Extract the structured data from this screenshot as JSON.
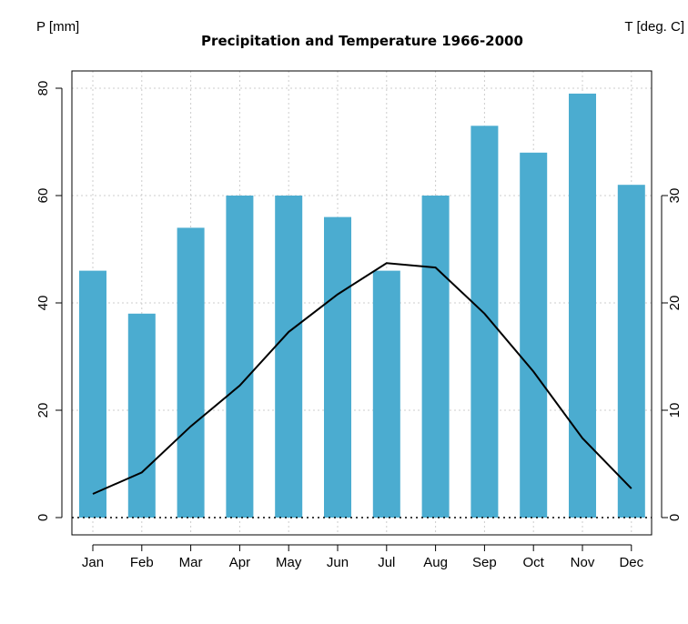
{
  "chart_data": {
    "type": "bar+line",
    "title": "Precipitation and Temperature 1966-2000",
    "categories": [
      "Jan",
      "Feb",
      "Mar",
      "Apr",
      "May",
      "Jun",
      "Jul",
      "Aug",
      "Sep",
      "Oct",
      "Nov",
      "Dec"
    ],
    "series": [
      {
        "type": "bar",
        "axis": "left",
        "values": [
          46,
          38,
          54,
          60,
          60,
          56,
          46,
          60,
          73,
          68,
          79,
          62
        ]
      },
      {
        "type": "line",
        "axis": "right",
        "values": [
          2.2,
          4.2,
          8.5,
          12.3,
          17.3,
          20.8,
          23.7,
          23.3,
          19.0,
          13.6,
          7.4,
          2.7
        ]
      }
    ],
    "ylabel_left": "P [mm]",
    "ylabel_right": "T [deg. C]",
    "ylim_left": [
      0,
      80
    ],
    "yticks_left": [
      0,
      20,
      40,
      60,
      80
    ],
    "yticks_right": [
      0,
      10,
      20,
      30
    ],
    "grid": true,
    "bar_color": "#4bacd0",
    "line_color": "#000000"
  }
}
